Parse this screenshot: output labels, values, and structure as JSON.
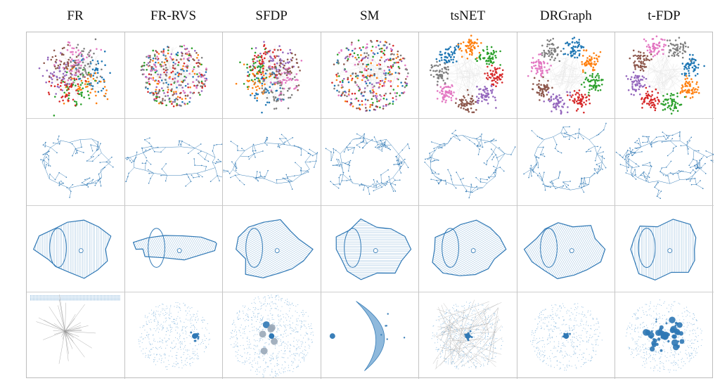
{
  "figure": {
    "methods": [
      "FR",
      "FR-RVS",
      "SFDP",
      "SM",
      "tsNET",
      "DRGraph",
      "t-FDP"
    ],
    "rows": 4
  },
  "colors": {
    "clusters": [
      "#1f77b4",
      "#ff7f0e",
      "#2ca02c",
      "#d62728",
      "#9467bd",
      "#8c564b",
      "#e377c2",
      "#7f7f7f"
    ],
    "edge": "#d9d9d9",
    "node": "#3a7fb8",
    "grid_line": "#bdbdbd"
  }
}
